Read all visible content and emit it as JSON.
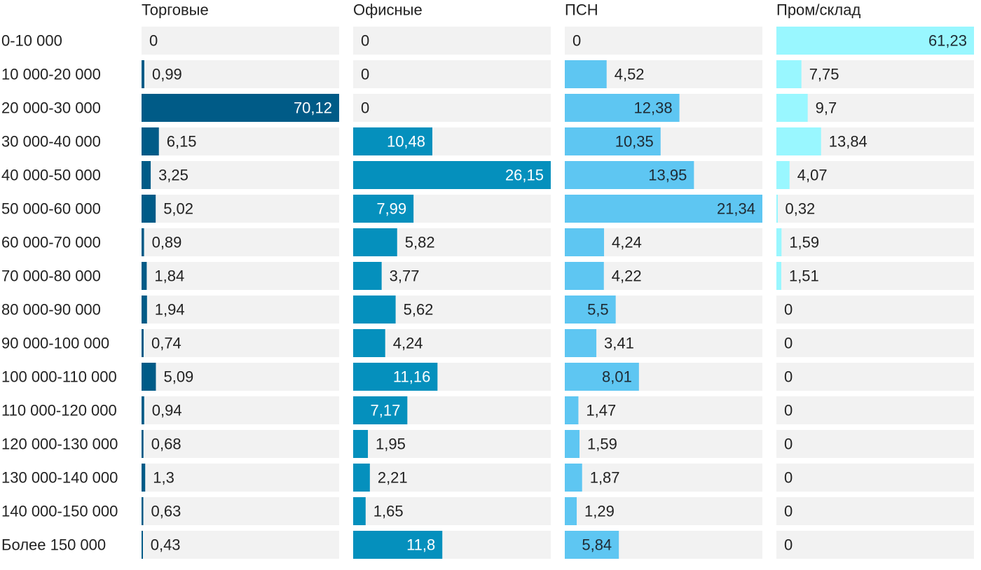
{
  "chart_data": {
    "type": "bar",
    "orientation": "horizontal",
    "layout": "small-multiples",
    "categories": [
      "0-10 000",
      "10 000-20 000",
      "20 000-30 000",
      "30 000-40 000",
      "40 000-50 000",
      "50 000-60 000",
      "60 000-70 000",
      "70 000-80 000",
      "80 000-90 000",
      "90 000-100 000",
      "100 000-110 000",
      "110 000-120 000",
      "120 000-130 000",
      "130 000-140 000",
      "140 000-150 000",
      "Более 150 000"
    ],
    "series": [
      {
        "name": "Торговые",
        "color": "#005b87",
        "max": 70.12,
        "values": [
          0,
          0.99,
          70.12,
          6.15,
          3.25,
          5.02,
          0.89,
          1.84,
          1.94,
          0.74,
          5.09,
          0.94,
          0.68,
          1.3,
          0.63,
          0.43
        ],
        "labels": [
          "0",
          "0,99",
          "70,12",
          "6,15",
          "3,25",
          "5,02",
          "0,89",
          "1,84",
          "1,94",
          "0,74",
          "5,09",
          "0,94",
          "0,68",
          "1,3",
          "0,63",
          "0,43"
        ]
      },
      {
        "name": "Офисные",
        "color": "#0590bd",
        "max": 26.15,
        "values": [
          0,
          0,
          0,
          10.48,
          26.15,
          7.99,
          5.82,
          3.77,
          5.62,
          4.24,
          11.16,
          7.17,
          1.95,
          2.21,
          1.65,
          11.8
        ],
        "labels": [
          "0",
          "0",
          "0",
          "10,48",
          "26,15",
          "7,99",
          "5,82",
          "3,77",
          "5,62",
          "4,24",
          "11,16",
          "7,17",
          "1,95",
          "2,21",
          "1,65",
          "11,8"
        ]
      },
      {
        "name": "ПСН",
        "color": "#5ec6f2",
        "max": 21.34,
        "values": [
          0,
          4.52,
          12.38,
          10.35,
          13.95,
          21.34,
          4.24,
          4.22,
          5.5,
          3.41,
          8.01,
          1.47,
          1.59,
          1.87,
          1.29,
          5.84
        ],
        "labels": [
          "0",
          "4,52",
          "12,38",
          "10,35",
          "13,95",
          "21,34",
          "4,24",
          "4,22",
          "5,5",
          "3,41",
          "8,01",
          "1,47",
          "1,59",
          "1,87",
          "1,29",
          "5,84"
        ]
      },
      {
        "name": "Пром/склад",
        "color": "#99f7ff",
        "max": 61.23,
        "values": [
          61.23,
          7.75,
          9.7,
          13.84,
          4.07,
          0.32,
          1.59,
          1.51,
          0,
          0,
          0,
          0,
          0,
          0,
          0,
          0
        ],
        "labels": [
          "61,23",
          "7,75",
          "9,7",
          "13,84",
          "4,07",
          "0,32",
          "1,59",
          "1,51",
          "0",
          "0",
          "0",
          "0",
          "0",
          "0",
          "0",
          "0"
        ]
      }
    ]
  }
}
